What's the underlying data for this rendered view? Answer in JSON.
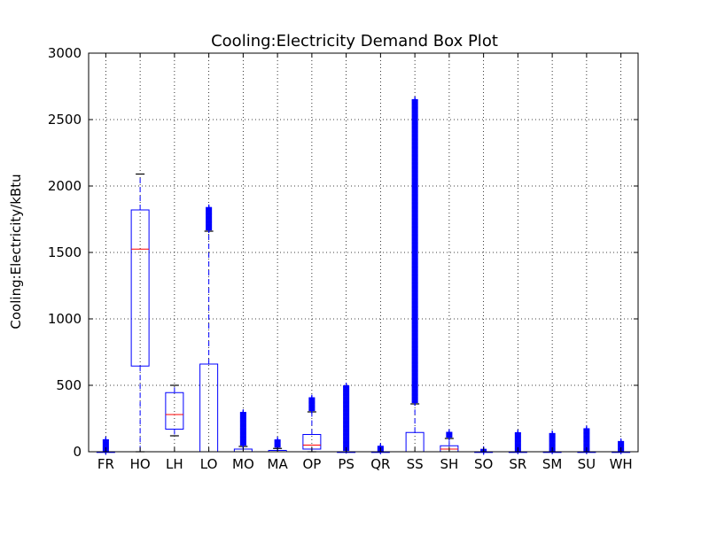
{
  "chart_data": {
    "type": "box",
    "title": "Cooling:Electricity Demand Box Plot",
    "xlabel": "",
    "ylabel": "Cooling:Electricity/kBtu",
    "ylim": [
      0,
      3000
    ],
    "yticks": [
      0,
      500,
      1000,
      1500,
      2000,
      2500,
      3000
    ],
    "grid": true,
    "colors": {
      "box": "#0000ff",
      "median": "#ff0000",
      "grid": "#000000"
    },
    "categories": [
      "FR",
      "HO",
      "LH",
      "LO",
      "MO",
      "MA",
      "OP",
      "PS",
      "QR",
      "SS",
      "SH",
      "SO",
      "SR",
      "SM",
      "SU",
      "WH"
    ],
    "boxes": [
      {
        "label": "FR",
        "whislo": 0,
        "q1": 0,
        "med": 0,
        "q3": 0,
        "whishi": 0,
        "fliers_range": [
          0,
          90
        ]
      },
      {
        "label": "HO",
        "whislo": 0,
        "q1": 645,
        "med": 1525,
        "q3": 1820,
        "whishi": 2090,
        "fliers_range": null
      },
      {
        "label": "LH",
        "whislo": 120,
        "q1": 170,
        "med": 280,
        "q3": 445,
        "whishi": 500,
        "fliers_range": null
      },
      {
        "label": "LO",
        "whislo": 0,
        "q1": 0,
        "med": 0,
        "q3": 660,
        "whishi": 1660,
        "fliers_range": [
          1670,
          1840
        ]
      },
      {
        "label": "MO",
        "whislo": 0,
        "q1": 0,
        "med": 0,
        "q3": 20,
        "whishi": 40,
        "fliers_range": [
          50,
          300
        ]
      },
      {
        "label": "MA",
        "whislo": 0,
        "q1": 0,
        "med": 0,
        "q3": 10,
        "whishi": 25,
        "fliers_range": [
          35,
          90
        ]
      },
      {
        "label": "OP",
        "whislo": 0,
        "q1": 20,
        "med": 50,
        "q3": 130,
        "whishi": 300,
        "fliers_range": [
          310,
          410
        ]
      },
      {
        "label": "PS",
        "whislo": 0,
        "q1": 0,
        "med": 0,
        "q3": 0,
        "whishi": 0,
        "fliers_range": [
          10,
          500
        ]
      },
      {
        "label": "QR",
        "whislo": 0,
        "q1": 0,
        "med": 0,
        "q3": 0,
        "whishi": 0,
        "fliers_range": [
          5,
          45
        ]
      },
      {
        "label": "SS",
        "whislo": 0,
        "q1": 0,
        "med": 0,
        "q3": 145,
        "whishi": 360,
        "fliers_range": [
          370,
          2650
        ]
      },
      {
        "label": "SH",
        "whislo": 0,
        "q1": 0,
        "med": 20,
        "q3": 45,
        "whishi": 100,
        "fliers_range": [
          110,
          150
        ]
      },
      {
        "label": "SO",
        "whislo": 0,
        "q1": 0,
        "med": 0,
        "q3": 0,
        "whishi": 0,
        "fliers_range": [
          0,
          20
        ]
      },
      {
        "label": "SR",
        "whislo": 0,
        "q1": 0,
        "med": 0,
        "q3": 0,
        "whishi": 0,
        "fliers_range": [
          5,
          145
        ]
      },
      {
        "label": "SM",
        "whislo": 0,
        "q1": 0,
        "med": 0,
        "q3": 0,
        "whishi": 0,
        "fliers_range": [
          5,
          140
        ]
      },
      {
        "label": "SU",
        "whislo": 0,
        "q1": 0,
        "med": 0,
        "q3": 0,
        "whishi": 0,
        "fliers_range": [
          5,
          175
        ]
      },
      {
        "label": "WH",
        "whislo": 0,
        "q1": 0,
        "med": 0,
        "q3": 0,
        "whishi": 0,
        "fliers_range": [
          5,
          80
        ]
      }
    ]
  }
}
